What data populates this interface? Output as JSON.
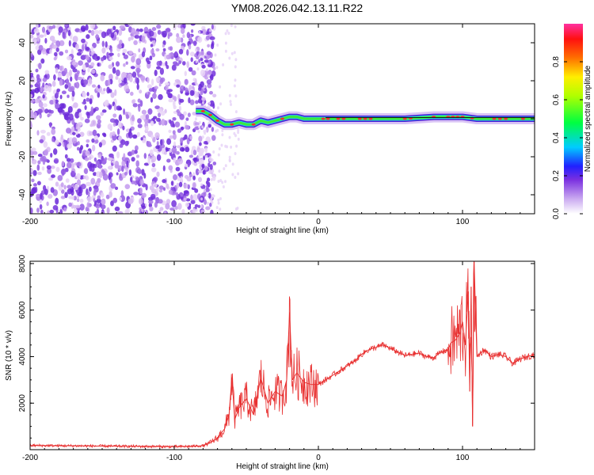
{
  "title": "YM08.2026.042.13.11.R22",
  "chart_data": [
    {
      "type": "heatmap",
      "xlabel": "Height of straight line (km)",
      "ylabel": "Frequency (Hz)",
      "xlim": [
        -200,
        150
      ],
      "ylim": [
        -50,
        50
      ],
      "x_ticks": [
        "-200",
        "-100",
        "0",
        "100"
      ],
      "y_ticks": [
        "-40",
        "-20",
        "0",
        "20",
        "40"
      ],
      "colorbar": {
        "label": "Normalized spectral amplitude",
        "range": [
          0,
          1
        ],
        "ticks": [
          "0.0",
          "0.2",
          "0.4",
          "0.6",
          "0.8"
        ]
      },
      "noise_region_x": [
        -200,
        -80
      ],
      "ridge": [
        {
          "x": -85,
          "y": 4
        },
        {
          "x": -80,
          "y": 4
        },
        {
          "x": -75,
          "y": 2
        },
        {
          "x": -70,
          "y": -1
        },
        {
          "x": -65,
          "y": -3
        },
        {
          "x": -60,
          "y": -3
        },
        {
          "x": -55,
          "y": -2
        },
        {
          "x": -50,
          "y": -3
        },
        {
          "x": -45,
          "y": -3
        },
        {
          "x": -40,
          "y": -1
        },
        {
          "x": -35,
          "y": -2
        },
        {
          "x": -30,
          "y": -1
        },
        {
          "x": -25,
          "y": 0
        },
        {
          "x": -20,
          "y": 1
        },
        {
          "x": -15,
          "y": 1
        },
        {
          "x": -10,
          "y": 0
        },
        {
          "x": -5,
          "y": 0
        },
        {
          "x": 0,
          "y": 0
        },
        {
          "x": 10,
          "y": 0
        },
        {
          "x": 40,
          "y": 0
        },
        {
          "x": 60,
          "y": 0
        },
        {
          "x": 80,
          "y": 1
        },
        {
          "x": 90,
          "y": 1
        },
        {
          "x": 100,
          "y": 1
        },
        {
          "x": 110,
          "y": 0
        },
        {
          "x": 150,
          "y": 0
        }
      ]
    },
    {
      "type": "line",
      "xlabel": "Height of straight line (km)",
      "ylabel": "SNR (10 * v/v)",
      "xlim": [
        -200,
        150
      ],
      "ylim": [
        0,
        8100
      ],
      "x_ticks": [
        "-200",
        "-100",
        "0",
        "100"
      ],
      "y_ticks": [
        "2000",
        "4000",
        "6000",
        "8000"
      ],
      "color": "#e83030",
      "series": [
        {
          "x": [
            -200,
            -180,
            -160,
            -140,
            -120,
            -100,
            -90,
            -80,
            -75,
            -70,
            -65,
            -62,
            -60,
            -58,
            -55,
            -50,
            -45,
            -40,
            -35,
            -30,
            -25,
            -22,
            -20,
            -18,
            -15,
            -10,
            -5,
            0,
            5,
            10,
            15,
            20,
            25,
            30,
            35,
            40,
            45,
            50,
            55,
            60,
            65,
            70,
            75,
            80,
            85,
            90,
            92,
            95,
            98,
            100,
            102,
            104,
            105,
            106,
            107,
            108,
            110,
            115,
            120,
            125,
            130,
            135,
            140,
            145,
            150
          ],
          "y": [
            180,
            170,
            160,
            150,
            140,
            130,
            140,
            170,
            300,
            500,
            900,
            1500,
            3100,
            1300,
            1800,
            2200,
            1500,
            3100,
            2000,
            2500,
            2300,
            3000,
            5900,
            3000,
            3300,
            2900,
            2800,
            2800,
            3000,
            3200,
            3400,
            3600,
            3800,
            4100,
            4300,
            4400,
            4500,
            4350,
            4200,
            4050,
            4100,
            4150,
            4000,
            3950,
            4200,
            4300,
            4600,
            4700,
            5000,
            5500,
            4500,
            6800,
            2500,
            7000,
            1000,
            8100,
            4000,
            4300,
            4000,
            4100,
            4000,
            3700,
            3900,
            4000,
            4100
          ]
        }
      ]
    }
  ]
}
